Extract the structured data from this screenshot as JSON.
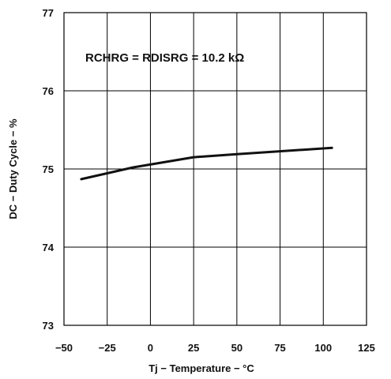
{
  "chart_data": {
    "type": "line",
    "title": "",
    "xlabel": "Tj − Temperature − °C",
    "ylabel": "DC − Duty Cycle − %",
    "xlim": [
      -50,
      125
    ],
    "ylim": [
      73,
      77
    ],
    "xticks": [
      -50,
      -25,
      0,
      25,
      50,
      75,
      100,
      125
    ],
    "yticks": [
      73,
      74,
      75,
      76,
      77
    ],
    "xtick_labels": [
      "−50",
      "−25",
      "0",
      "25",
      "50",
      "75",
      "100",
      "125"
    ],
    "ytick_labels": [
      "73",
      "74",
      "75",
      "76",
      "77"
    ],
    "grid": true,
    "annotation": "RCHRG = RDISRG = 10.2 kΩ",
    "series": [
      {
        "x": [
          -40,
          -10,
          25,
          50,
          105
        ],
        "y": [
          74.87,
          75.02,
          75.15,
          75.19,
          75.27
        ]
      }
    ]
  }
}
